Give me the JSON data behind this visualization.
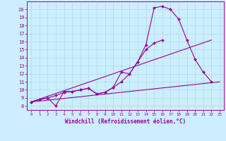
{
  "bg_color": "#cceeff",
  "line_color": "#990099",
  "grid_color": "#aadddd",
  "xlabel": "Windchill (Refroidissement éolien,°C)",
  "xlim": [
    -0.5,
    23.5
  ],
  "ylim": [
    7.5,
    21.0
  ],
  "xticks": [
    0,
    1,
    2,
    3,
    4,
    5,
    6,
    7,
    8,
    9,
    10,
    11,
    12,
    13,
    14,
    15,
    16,
    17,
    18,
    19,
    20,
    21,
    22,
    23
  ],
  "yticks": [
    8,
    9,
    10,
    11,
    12,
    13,
    14,
    15,
    16,
    17,
    18,
    19,
    20
  ],
  "curve1_x": [
    0,
    1,
    2,
    3,
    4,
    5,
    6,
    7,
    8,
    9,
    10,
    11,
    12,
    13,
    14,
    15,
    16,
    17,
    18,
    19,
    20,
    21,
    22
  ],
  "curve1_y": [
    8.5,
    8.8,
    9.0,
    8.0,
    9.8,
    9.8,
    10.0,
    10.2,
    9.5,
    9.7,
    10.3,
    12.2,
    12.0,
    13.5,
    15.6,
    20.2,
    20.4,
    20.0,
    18.8,
    16.2,
    13.8,
    12.2,
    11.0
  ],
  "curve2_x": [
    0,
    1,
    2,
    3,
    4,
    5,
    6,
    7,
    8,
    9,
    10,
    11,
    12,
    13,
    14,
    15,
    16,
    17,
    18,
    19,
    20,
    21,
    22,
    23
  ],
  "curve2_y": [
    8.5,
    8.8,
    9.0,
    9.3,
    9.7,
    9.8,
    10.0,
    10.2,
    9.5,
    9.7,
    10.3,
    11.0,
    12.0,
    13.5,
    15.0,
    15.8,
    16.2,
    null,
    null,
    null,
    null,
    null,
    null,
    null
  ],
  "line3_x": [
    0,
    23
  ],
  "line3_y": [
    8.5,
    11.0
  ],
  "line4_x": [
    0,
    22
  ],
  "line4_y": [
    8.5,
    16.2
  ],
  "markersize": 2.0,
  "linewidth": 0.8,
  "marker": "D"
}
